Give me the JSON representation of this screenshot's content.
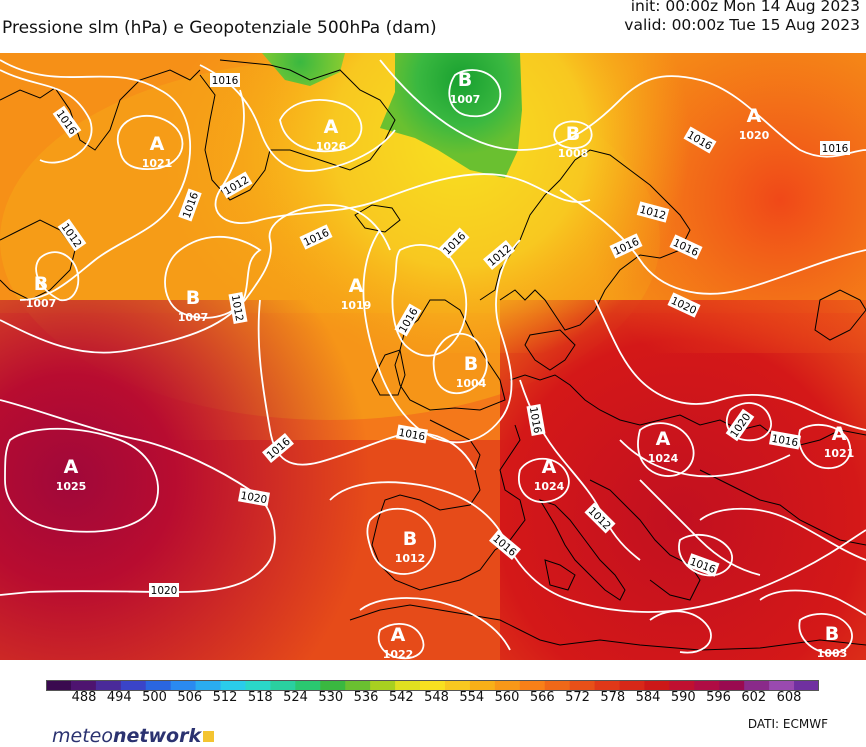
{
  "header": {
    "title": "Pressione slm (hPa) e Geopotenziale 500hPa (dam)",
    "init": "init: 00:00z Mon 14 Aug 2023",
    "valid": "valid: 00:00z Tue 15 Aug 2023"
  },
  "colorbar": {
    "labels": [
      "488",
      "494",
      "500",
      "506",
      "512",
      "518",
      "524",
      "530",
      "536",
      "542",
      "548",
      "554",
      "560",
      "566",
      "572",
      "578",
      "584",
      "590",
      "596",
      "602",
      "608"
    ],
    "colors": [
      "#3a0a4f",
      "#4e1470",
      "#4a2a9a",
      "#3a44c8",
      "#2a66e0",
      "#2a8af0",
      "#2aacf0",
      "#2accea",
      "#2ad8c8",
      "#2ad0a0",
      "#2ac870",
      "#3ab840",
      "#6ac030",
      "#a8d020",
      "#e0e020",
      "#f8e020",
      "#f8c820",
      "#f8b018",
      "#f89818",
      "#f88018",
      "#f06818",
      "#e85018",
      "#e03818",
      "#d82818",
      "#cc1818",
      "#c01030",
      "#b00c44",
      "#9a0a50",
      "#8a2a8a",
      "#9a4ab0",
      "#7030a0"
    ]
  },
  "map": {
    "pressure_centers": [
      {
        "type": "A",
        "value": "1021"
      },
      {
        "type": "A",
        "value": "1026"
      },
      {
        "type": "B",
        "value": "1007"
      },
      {
        "type": "B",
        "value": "1008"
      },
      {
        "type": "A",
        "value": "1020"
      },
      {
        "type": "B",
        "value": "1007"
      },
      {
        "type": "B",
        "value": "1007"
      },
      {
        "type": "A",
        "value": "1019"
      },
      {
        "type": "B",
        "value": "1004"
      },
      {
        "type": "A",
        "value": "1025"
      },
      {
        "type": "B",
        "value": "1012"
      },
      {
        "type": "A",
        "value": "1024"
      },
      {
        "type": "A",
        "value": "1024"
      },
      {
        "type": "A",
        "value": "1021"
      },
      {
        "type": "A",
        "value": "1022"
      },
      {
        "type": "B",
        "value": "1003"
      }
    ],
    "isobar_labels": [
      "1016",
      "1016",
      "1012",
      "1016",
      "1016",
      "1012",
      "1016",
      "1012",
      "1016",
      "1016",
      "1012",
      "1016",
      "1016",
      "1020",
      "1012",
      "1016",
      "1016",
      "1016",
      "1020",
      "1020",
      "1016",
      "1016",
      "1012",
      "1020",
      "1016",
      "1016"
    ]
  },
  "footer": {
    "brand_light": "meteo",
    "brand_bold": "network",
    "credits": "DATI:  ECMWF"
  }
}
